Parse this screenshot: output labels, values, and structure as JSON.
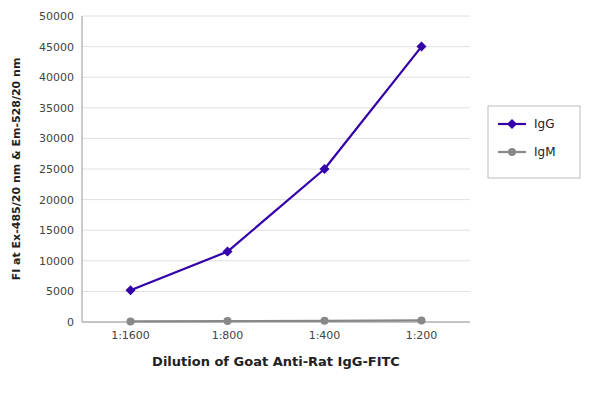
{
  "chart_data": {
    "type": "line",
    "xlabel": "Dilution of Goat Anti-Rat IgG-FITC",
    "ylabel": "FI at Ex-485/20 nm & Em-528/20 nm",
    "categories": [
      "1:1600",
      "1:800",
      "1:400",
      "1:200"
    ],
    "series": [
      {
        "name": "IgG",
        "color": "#3300AA",
        "marker": "diamond",
        "values": [
          5200,
          11500,
          25000,
          45000
        ]
      },
      {
        "name": "IgM",
        "color": "#888888",
        "marker": "circle",
        "values": [
          100,
          150,
          200,
          250
        ]
      }
    ],
    "ylim": [
      0,
      50000
    ],
    "yticks": [
      0,
      5000,
      10000,
      15000,
      20000,
      25000,
      30000,
      35000,
      40000,
      45000,
      50000
    ],
    "grid": true,
    "legend": "right"
  }
}
